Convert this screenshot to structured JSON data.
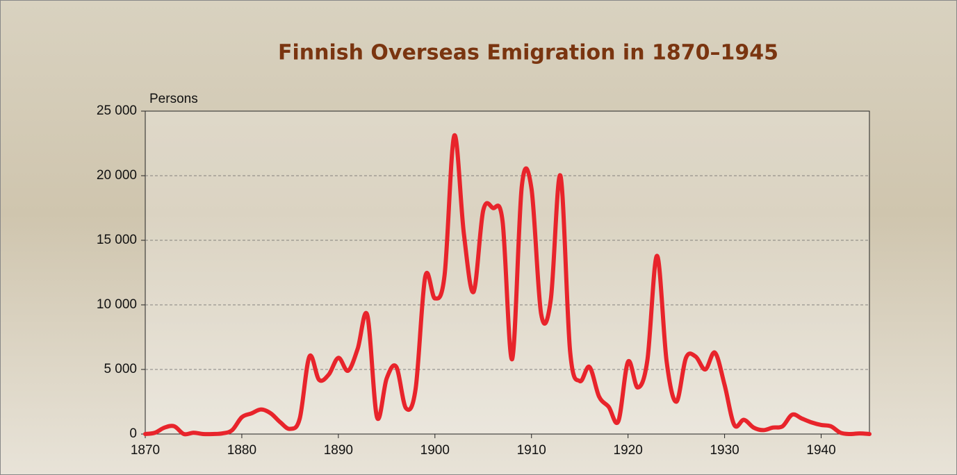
{
  "chart_data": {
    "type": "line",
    "title": "Finnish Overseas Emigration in 1870–1945",
    "y_label": "Persons",
    "x": [
      1870,
      1871,
      1872,
      1873,
      1874,
      1875,
      1876,
      1877,
      1878,
      1879,
      1880,
      1881,
      1882,
      1883,
      1884,
      1885,
      1886,
      1887,
      1888,
      1889,
      1890,
      1891,
      1892,
      1893,
      1894,
      1895,
      1896,
      1897,
      1898,
      1899,
      1900,
      1901,
      1902,
      1903,
      1904,
      1905,
      1906,
      1907,
      1908,
      1909,
      1910,
      1911,
      1912,
      1913,
      1914,
      1915,
      1916,
      1917,
      1918,
      1919,
      1920,
      1921,
      1922,
      1923,
      1924,
      1925,
      1926,
      1927,
      1928,
      1929,
      1930,
      1931,
      1932,
      1933,
      1934,
      1935,
      1936,
      1937,
      1938,
      1939,
      1940,
      1941,
      1942,
      1943,
      1944,
      1945
    ],
    "series": [
      {
        "name": "Persons",
        "color": "#e8242b",
        "values": [
          0,
          100,
          500,
          600,
          0,
          100,
          0,
          0,
          50,
          300,
          1300,
          1600,
          1900,
          1600,
          900,
          400,
          1200,
          6000,
          4200,
          4600,
          5900,
          4900,
          6600,
          9200,
          1300,
          4300,
          5200,
          2000,
          3500,
          12200,
          10500,
          12300,
          23100,
          15500,
          11000,
          17300,
          17500,
          16500,
          5800,
          19200,
          19000,
          9300,
          10400,
          20000,
          6400,
          4100,
          5200,
          2900,
          2100,
          1000,
          5600,
          3600,
          5700,
          13800,
          5600,
          2500,
          5900,
          6000,
          5000,
          6300,
          3800,
          700,
          1100,
          500,
          300,
          500,
          600,
          1500,
          1200,
          900,
          700,
          600,
          100,
          0,
          50,
          0
        ]
      }
    ],
    "xlim": [
      1870,
      1945
    ],
    "xticks": [
      1870,
      1880,
      1890,
      1900,
      1910,
      1920,
      1930,
      1940
    ],
    "ylim": [
      0,
      25000
    ],
    "yticks": [
      {
        "value": 0,
        "label": "0"
      },
      {
        "value": 5000,
        "label": "5 000"
      },
      {
        "value": 10000,
        "label": "10 000"
      },
      {
        "value": 15000,
        "label": "15 000"
      },
      {
        "value": 20000,
        "label": "20 000"
      },
      {
        "value": 25000,
        "label": "25 000"
      }
    ],
    "grid": true
  }
}
